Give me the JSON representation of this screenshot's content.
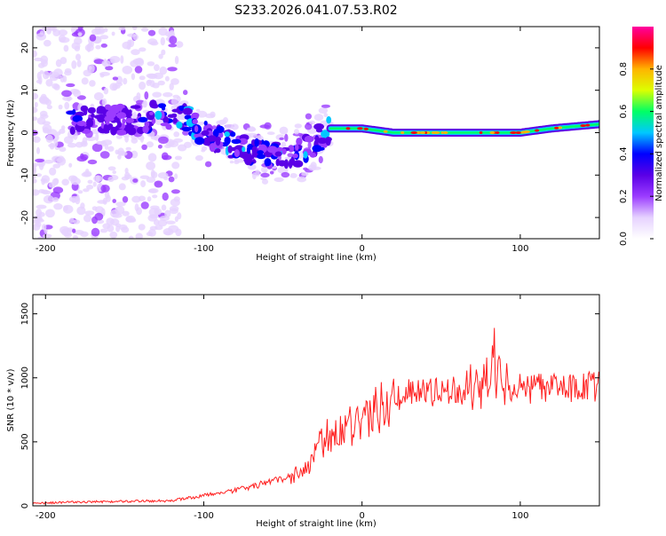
{
  "title": "S233.2026.041.07.53.R02",
  "chart_data": [
    {
      "type": "heatmap",
      "title": "S233.2026.041.07.53.R02",
      "xlabel": "Height of straight line (km)",
      "ylabel": "Frequency (Hz)",
      "xlim": [
        -208,
        150
      ],
      "ylim": [
        -25,
        25
      ],
      "x_ticks": [
        -200,
        -100,
        0,
        100
      ],
      "y_ticks": [
        -20,
        -10,
        0,
        10,
        20
      ],
      "colorbar": {
        "label": "Normalized spectral amplitude",
        "range": [
          0,
          1
        ],
        "ticks": [
          0.0,
          0.2,
          0.4,
          0.6,
          0.8
        ],
        "colors": [
          "#ffffff",
          "#e6d2ff",
          "#9b3cff",
          "#5a00e6",
          "#0000ff",
          "#00c8ff",
          "#00ff64",
          "#dcff00",
          "#ffb400",
          "#ff0000",
          "#ff00a0"
        ]
      },
      "ridge": {
        "description": "dominant frequency track",
        "x": [
          -180,
          -150,
          -130,
          -110,
          -100,
          -90,
          -80,
          -70,
          -60,
          -50,
          -40,
          -30,
          -20,
          0,
          20,
          40,
          60,
          80,
          100,
          120,
          150
        ],
        "y": [
          3,
          3,
          4,
          3,
          0,
          -2,
          -3,
          -4,
          -5,
          -6,
          -5,
          -2,
          1,
          1,
          0,
          0,
          0,
          0,
          0,
          1,
          2
        ]
      }
    },
    {
      "type": "line",
      "xlabel": "Height of straight line (km)",
      "ylabel": "SNR (10 * v/v)",
      "xlim": [
        -208,
        150
      ],
      "ylim": [
        0,
        1650
      ],
      "x_ticks": [
        -200,
        -100,
        0,
        100
      ],
      "y_ticks": [
        0,
        500,
        1000,
        1500
      ],
      "series": [
        {
          "name": "SNR",
          "color": "#ff2020",
          "x": [
            -208,
            -180,
            -150,
            -120,
            -100,
            -80,
            -60,
            -45,
            -35,
            -28,
            -20,
            -10,
            0,
            10,
            20,
            30,
            40,
            50,
            60,
            70,
            75,
            80,
            83,
            86,
            90,
            100,
            110,
            120,
            130,
            150
          ],
          "y": [
            20,
            30,
            35,
            40,
            80,
            120,
            180,
            230,
            300,
            450,
            560,
            620,
            680,
            750,
            850,
            880,
            890,
            900,
            900,
            920,
            950,
            1000,
            1200,
            1000,
            930,
            920,
            915,
            915,
            920,
            930
          ]
        }
      ]
    }
  ]
}
